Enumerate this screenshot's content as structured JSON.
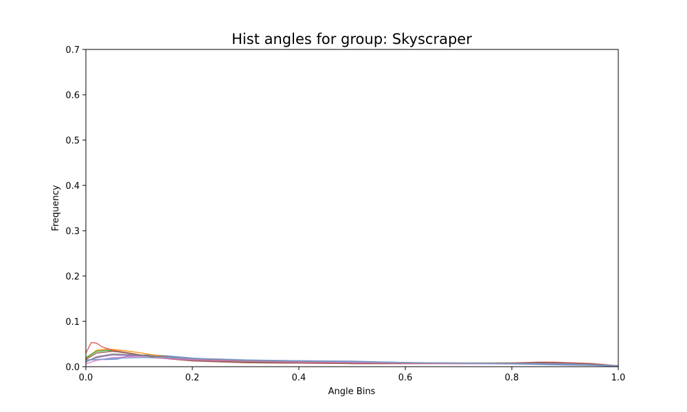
{
  "chart_data": {
    "type": "line",
    "title": "Hist angles for group: Skyscraper",
    "xlabel": "Angle Bins",
    "ylabel": "Frequency",
    "xlim": [
      0,
      1
    ],
    "ylim": [
      0,
      0.7
    ],
    "xticks": [
      "0.0",
      "0.2",
      "0.4",
      "0.6",
      "0.8",
      "1.0"
    ],
    "yticks": [
      "0.0",
      "0.1",
      "0.2",
      "0.3",
      "0.4",
      "0.5",
      "0.6",
      "0.7"
    ],
    "grid": false,
    "series": [
      {
        "color": "#4e79c8",
        "x": [
          0,
          0.02,
          0.04,
          0.06,
          0.08,
          0.1,
          0.12,
          0.15,
          0.2,
          0.25,
          0.3,
          0.4,
          0.5,
          0.6,
          0.7,
          0.8,
          0.85,
          0.9,
          0.95,
          1.0
        ],
        "y": [
          0.015,
          0.016,
          0.016,
          0.017,
          0.024,
          0.025,
          0.026,
          0.024,
          0.019,
          0.016,
          0.014,
          0.013,
          0.012,
          0.009,
          0.007,
          0.006,
          0.005,
          0.004,
          0.003,
          0.001
        ]
      },
      {
        "color": "#ff8c00",
        "x": [
          0,
          0.02,
          0.04,
          0.06,
          0.08,
          0.1,
          0.12,
          0.15,
          0.2,
          0.3,
          0.4,
          0.5,
          0.6,
          0.7,
          0.8,
          0.85,
          0.9,
          0.95,
          1.0
        ],
        "y": [
          0.018,
          0.036,
          0.039,
          0.037,
          0.034,
          0.031,
          0.027,
          0.022,
          0.016,
          0.012,
          0.01,
          0.009,
          0.008,
          0.008,
          0.008,
          0.008,
          0.007,
          0.005,
          0.002
        ]
      },
      {
        "color": "#2ca02c",
        "x": [
          0,
          0.02,
          0.04,
          0.06,
          0.08,
          0.1,
          0.15,
          0.2,
          0.3,
          0.4,
          0.5,
          0.6,
          0.7,
          0.8,
          0.85,
          0.9,
          0.95,
          1.0
        ],
        "y": [
          0.02,
          0.034,
          0.036,
          0.034,
          0.03,
          0.026,
          0.02,
          0.015,
          0.011,
          0.01,
          0.009,
          0.008,
          0.008,
          0.008,
          0.008,
          0.007,
          0.005,
          0.002
        ]
      },
      {
        "color": "#e05555",
        "x": [
          0,
          0.01,
          0.02,
          0.03,
          0.05,
          0.08,
          0.1,
          0.15,
          0.2,
          0.3,
          0.4,
          0.5,
          0.6,
          0.7,
          0.8,
          0.85,
          0.88,
          0.9,
          0.95,
          1.0
        ],
        "y": [
          0.03,
          0.053,
          0.052,
          0.044,
          0.036,
          0.03,
          0.026,
          0.018,
          0.013,
          0.009,
          0.008,
          0.007,
          0.007,
          0.007,
          0.008,
          0.01,
          0.01,
          0.009,
          0.007,
          0.002
        ]
      },
      {
        "color": "#9467bd",
        "x": [
          0,
          0.02,
          0.05,
          0.1,
          0.15,
          0.2,
          0.3,
          0.4,
          0.5,
          0.6,
          0.7,
          0.8,
          0.9,
          1.0
        ],
        "y": [
          0.012,
          0.02,
          0.026,
          0.024,
          0.021,
          0.017,
          0.013,
          0.011,
          0.01,
          0.008,
          0.007,
          0.007,
          0.006,
          0.002
        ]
      },
      {
        "color": "#8c564b",
        "x": [
          0,
          0.02,
          0.05,
          0.08,
          0.1,
          0.15,
          0.2,
          0.3,
          0.4,
          0.5,
          0.6,
          0.7,
          0.8,
          0.85,
          0.9,
          0.95,
          1.0
        ],
        "y": [
          0.016,
          0.03,
          0.034,
          0.03,
          0.026,
          0.018,
          0.013,
          0.009,
          0.008,
          0.007,
          0.007,
          0.007,
          0.008,
          0.009,
          0.008,
          0.006,
          0.002
        ]
      },
      {
        "color": "#e377c2",
        "x": [
          0,
          0.02,
          0.05,
          0.08,
          0.1,
          0.15,
          0.2,
          0.3,
          0.4,
          0.5,
          0.6,
          0.7,
          0.8,
          0.9,
          1.0
        ],
        "y": [
          0.006,
          0.014,
          0.02,
          0.022,
          0.021,
          0.018,
          0.015,
          0.012,
          0.01,
          0.009,
          0.008,
          0.007,
          0.007,
          0.006,
          0.002
        ]
      },
      {
        "color": "#7f7f7f",
        "x": [
          0,
          0.02,
          0.05,
          0.08,
          0.1,
          0.15,
          0.2,
          0.3,
          0.4,
          0.5,
          0.6,
          0.7,
          0.8,
          0.9,
          1.0
        ],
        "y": [
          0.01,
          0.022,
          0.028,
          0.027,
          0.025,
          0.021,
          0.018,
          0.014,
          0.012,
          0.011,
          0.009,
          0.008,
          0.007,
          0.006,
          0.002
        ]
      },
      {
        "color": "#7f9fd0",
        "x": [
          0,
          0.05,
          0.1,
          0.15,
          0.2,
          0.25,
          0.3,
          0.4,
          0.45,
          0.5,
          0.52,
          0.6,
          0.7,
          0.8,
          0.9,
          1.0
        ],
        "y": [
          0.014,
          0.018,
          0.02,
          0.02,
          0.018,
          0.017,
          0.015,
          0.013,
          0.012,
          0.011,
          0.011,
          0.009,
          0.008,
          0.007,
          0.006,
          0.002
        ]
      }
    ]
  }
}
